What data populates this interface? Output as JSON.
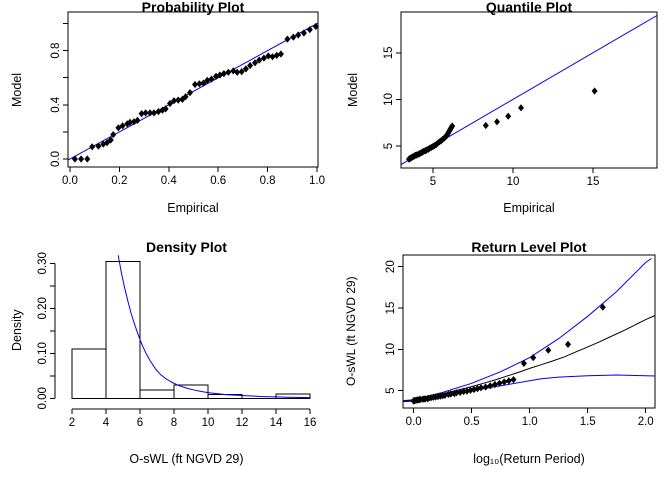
{
  "colors": {
    "fit_line_blue": "#0000EE",
    "data_black": "#000000",
    "background": "#FFFFFF"
  },
  "chart_data": [
    {
      "id": "probability-plot",
      "type": "scatter",
      "title": "Probability Plot",
      "xlabel": "Empirical",
      "ylabel": "Model",
      "rect": {
        "l": 68,
        "t": 12,
        "r": 318,
        "b": 167
      },
      "xlim": [
        -0.008,
        1.004
      ],
      "ylim": [
        -0.059,
        1.085
      ],
      "box": true,
      "grid": false,
      "xticks": {
        "values": [
          0,
          0.2,
          0.4,
          0.6,
          0.8,
          1.0
        ],
        "labels": [
          "0.0",
          "0.2",
          "0.4",
          "0.6",
          "0.8",
          "1.0"
        ]
      },
      "yticks": {
        "values": [
          0,
          0.2,
          0.4,
          0.6,
          0.8,
          1.0
        ],
        "labels": [
          "0.0",
          "",
          "0.4",
          "",
          "0.8",
          ""
        ]
      },
      "lines": [
        {
          "name": "one-to-one-line",
          "color": "#0000EE",
          "width": 1,
          "points": [
            [
              -0.008,
              -0.008
            ],
            [
              1.004,
              1.004
            ]
          ]
        }
      ],
      "points": {
        "name": "probability-points",
        "color": "#000000",
        "marker": "diamond",
        "xy": [
          [
            0.02,
            0.0
          ],
          [
            0.045,
            0.0
          ],
          [
            0.07,
            0.0
          ],
          [
            0.09,
            0.09
          ],
          [
            0.115,
            0.095
          ],
          [
            0.135,
            0.11
          ],
          [
            0.15,
            0.12
          ],
          [
            0.165,
            0.14
          ],
          [
            0.175,
            0.18
          ],
          [
            0.196,
            0.23
          ],
          [
            0.213,
            0.245
          ],
          [
            0.232,
            0.26
          ],
          [
            0.243,
            0.27
          ],
          [
            0.259,
            0.275
          ],
          [
            0.273,
            0.285
          ],
          [
            0.29,
            0.335
          ],
          [
            0.306,
            0.34
          ],
          [
            0.324,
            0.34
          ],
          [
            0.34,
            0.34
          ],
          [
            0.358,
            0.35
          ],
          [
            0.374,
            0.36
          ],
          [
            0.387,
            0.37
          ],
          [
            0.405,
            0.41
          ],
          [
            0.421,
            0.43
          ],
          [
            0.438,
            0.435
          ],
          [
            0.455,
            0.44
          ],
          [
            0.468,
            0.46
          ],
          [
            0.486,
            0.49
          ],
          [
            0.506,
            0.55
          ],
          [
            0.524,
            0.555
          ],
          [
            0.54,
            0.56
          ],
          [
            0.556,
            0.58
          ],
          [
            0.573,
            0.59
          ],
          [
            0.591,
            0.61
          ],
          [
            0.607,
            0.62
          ],
          [
            0.623,
            0.63
          ],
          [
            0.641,
            0.64
          ],
          [
            0.661,
            0.65
          ],
          [
            0.677,
            0.64
          ],
          [
            0.695,
            0.645
          ],
          [
            0.712,
            0.665
          ],
          [
            0.729,
            0.69
          ],
          [
            0.749,
            0.71
          ],
          [
            0.766,
            0.73
          ],
          [
            0.785,
            0.745
          ],
          [
            0.803,
            0.76
          ],
          [
            0.82,
            0.755
          ],
          [
            0.837,
            0.765
          ],
          [
            0.854,
            0.775
          ],
          [
            0.88,
            0.885
          ],
          [
            0.904,
            0.9
          ],
          [
            0.924,
            0.915
          ],
          [
            0.947,
            0.93
          ],
          [
            0.971,
            0.955
          ],
          [
            0.995,
            0.978
          ]
        ]
      }
    },
    {
      "id": "quantile-plot",
      "type": "scatter",
      "title": "Quantile Plot",
      "xlabel": "Empirical",
      "ylabel": "Model",
      "rect": {
        "l": 65,
        "t": 12,
        "r": 321,
        "b": 168
      },
      "xlim": [
        3.0,
        19.0
      ],
      "ylim": [
        2.64,
        19.38
      ],
      "box": true,
      "grid": false,
      "xticks": {
        "values": [
          5,
          10,
          15
        ],
        "labels": [
          "5",
          "10",
          "15"
        ]
      },
      "yticks": {
        "values": [
          5,
          10,
          15
        ],
        "labels": [
          "5",
          "10",
          "15"
        ]
      },
      "lines": [
        {
          "name": "one-to-one-line",
          "color": "#0000EE",
          "width": 1,
          "points": [
            [
              3.0,
              3.0
            ],
            [
              19.0,
              19.0
            ]
          ]
        }
      ],
      "points": {
        "name": "quantile-points",
        "color": "#000000",
        "marker": "diamond",
        "xy": [
          [
            3.5,
            3.6
          ],
          [
            3.55,
            3.65
          ],
          [
            3.6,
            3.7
          ],
          [
            3.65,
            3.75
          ],
          [
            3.7,
            3.8
          ],
          [
            3.75,
            3.85
          ],
          [
            3.8,
            3.9
          ],
          [
            3.85,
            3.95
          ],
          [
            3.9,
            4.0
          ],
          [
            3.95,
            4.02
          ],
          [
            4.0,
            4.06
          ],
          [
            4.1,
            4.12
          ],
          [
            4.15,
            4.17
          ],
          [
            4.2,
            4.22
          ],
          [
            4.3,
            4.3
          ],
          [
            4.35,
            4.36
          ],
          [
            4.4,
            4.42
          ],
          [
            4.5,
            4.48
          ],
          [
            4.55,
            4.52
          ],
          [
            4.6,
            4.57
          ],
          [
            4.7,
            4.65
          ],
          [
            4.75,
            4.7
          ],
          [
            4.8,
            4.76
          ],
          [
            4.9,
            4.85
          ],
          [
            5.0,
            4.95
          ],
          [
            5.1,
            5.05
          ],
          [
            5.2,
            5.15
          ],
          [
            5.3,
            5.3
          ],
          [
            5.4,
            5.45
          ],
          [
            5.5,
            5.55
          ],
          [
            5.6,
            5.7
          ],
          [
            5.7,
            5.85
          ],
          [
            5.8,
            6.0
          ],
          [
            5.85,
            6.1
          ],
          [
            5.9,
            6.25
          ],
          [
            5.95,
            6.4
          ],
          [
            6.0,
            6.55
          ],
          [
            6.05,
            6.7
          ],
          [
            6.1,
            6.85
          ],
          [
            6.15,
            7.0
          ],
          [
            6.2,
            7.15
          ],
          [
            8.3,
            7.2
          ],
          [
            9.0,
            7.6
          ],
          [
            9.7,
            8.2
          ],
          [
            10.5,
            9.1
          ],
          [
            15.1,
            10.9
          ]
        ]
      }
    },
    {
      "id": "density-plot",
      "type": "bar",
      "title": "Density Plot",
      "xlabel": "O-sWL (ft NGVD 29)",
      "ylabel": "Density",
      "rect": {
        "l": 55,
        "t": 10,
        "r": 318,
        "b": 169
      },
      "xlim": [
        1.0,
        16.47
      ],
      "ylim": [
        -0.0238,
        0.3296
      ],
      "box": false,
      "grid": false,
      "axis_x_span": [
        2,
        16
      ],
      "axis_y_span": [
        0,
        0.3
      ],
      "xticks": {
        "values": [
          2,
          4,
          6,
          8,
          10,
          12,
          14,
          16
        ],
        "labels": [
          "2",
          "4",
          "6",
          "8",
          "10",
          "12",
          "14",
          "16"
        ]
      },
      "yticks": {
        "values": [
          0,
          0.05,
          0.1,
          0.15,
          0.2,
          0.25,
          0.3
        ],
        "labels": [
          "0.00",
          "",
          "0.10",
          "",
          "0.20",
          "",
          "0.30"
        ]
      },
      "bars": {
        "name": "histogram-bars",
        "edges": [
          2,
          4,
          6,
          8,
          10,
          12,
          14,
          16
        ],
        "heights": [
          0.11,
          0.304,
          0.018,
          0.03,
          0.008,
          0,
          0.009
        ]
      },
      "lines": [
        {
          "name": "fitted-density-curve",
          "color": "#0000EE",
          "width": 1,
          "points": [
            [
              4.72,
              0.318
            ],
            [
              4.9,
              0.28
            ],
            [
              5.1,
              0.245
            ],
            [
              5.3,
              0.214
            ],
            [
              5.5,
              0.186
            ],
            [
              5.7,
              0.162
            ],
            [
              5.9,
              0.141
            ],
            [
              6.1,
              0.121
            ],
            [
              6.35,
              0.1
            ],
            [
              6.6,
              0.083
            ],
            [
              6.9,
              0.066
            ],
            [
              7.2,
              0.053
            ],
            [
              7.5,
              0.044
            ],
            [
              7.9,
              0.035
            ],
            [
              8.3,
              0.028
            ],
            [
              8.7,
              0.023
            ],
            [
              9.1,
              0.019
            ],
            [
              9.6,
              0.015
            ],
            [
              10.1,
              0.012
            ],
            [
              10.6,
              0.01
            ],
            [
              11.1,
              0.008
            ],
            [
              11.6,
              0.007
            ],
            [
              12.1,
              0.006
            ],
            [
              12.6,
              0.005
            ],
            [
              13.1,
              0.004
            ],
            [
              13.6,
              0.0035
            ],
            [
              14.1,
              0.003
            ],
            [
              14.6,
              0.0025
            ],
            [
              15.1,
              0.002
            ],
            [
              15.6,
              0.0018
            ],
            [
              16.0,
              0.0015
            ]
          ]
        }
      ]
    },
    {
      "id": "return-level-plot",
      "type": "line",
      "title": "Return Level Plot",
      "xlabel": "log₁₀(Return Period)",
      "ylabel": "O-sWL (ft NGVD 29)",
      "rect": {
        "l": 67,
        "t": 15,
        "r": 319,
        "b": 168
      },
      "xlim": [
        -0.092,
        2.08
      ],
      "ylim": [
        2.91,
        21.41
      ],
      "box": true,
      "grid": false,
      "xticks": {
        "values": [
          0,
          0.5,
          1.0,
          1.5,
          2.0
        ],
        "labels": [
          "0.0",
          "0.5",
          "1.0",
          "1.5",
          "2.0"
        ]
      },
      "yticks": {
        "values": [
          5,
          10,
          15,
          20
        ],
        "labels": [
          "5",
          "10",
          "15",
          "20"
        ]
      },
      "lines": [
        {
          "name": "lower-confidence-curve",
          "color": "#0000EE",
          "width": 1,
          "points": [
            [
              -0.09,
              3.68
            ],
            [
              0,
              3.75
            ],
            [
              0.25,
              4.4
            ],
            [
              0.5,
              5.0
            ],
            [
              0.75,
              5.6
            ],
            [
              1.0,
              6.2
            ],
            [
              1.1,
              6.45
            ],
            [
              1.25,
              6.65
            ],
            [
              1.5,
              6.8
            ],
            [
              1.75,
              6.9
            ],
            [
              2.0,
              6.8
            ],
            [
              2.08,
              6.78
            ]
          ]
        },
        {
          "name": "upper-confidence-curve",
          "color": "#0000EE",
          "width": 1,
          "points": [
            [
              -0.09,
              3.8
            ],
            [
              0,
              3.9
            ],
            [
              0.25,
              4.8
            ],
            [
              0.5,
              5.9
            ],
            [
              0.75,
              7.3
            ],
            [
              1.0,
              9.0
            ],
            [
              1.25,
              11.3
            ],
            [
              1.5,
              14.0
            ],
            [
              1.75,
              17.0
            ],
            [
              2.0,
              20.5
            ],
            [
              2.05,
              21.0
            ]
          ]
        },
        {
          "name": "return-level-curve",
          "color": "#000000",
          "width": 1,
          "points": [
            [
              -0.09,
              3.72
            ],
            [
              0,
              3.8
            ],
            [
              0.1,
              4.1
            ],
            [
              0.2,
              4.45
            ],
            [
              0.3,
              4.8
            ],
            [
              0.4,
              5.15
            ],
            [
              0.5,
              5.5
            ],
            [
              0.6,
              5.9
            ],
            [
              0.7,
              6.3
            ],
            [
              0.8,
              6.75
            ],
            [
              0.9,
              7.2
            ],
            [
              1.0,
              7.7
            ],
            [
              1.1,
              8.15
            ],
            [
              1.2,
              8.6
            ],
            [
              1.3,
              9.1
            ],
            [
              1.4,
              9.7
            ],
            [
              1.5,
              10.3
            ],
            [
              1.6,
              10.9
            ],
            [
              1.7,
              11.55
            ],
            [
              1.8,
              12.2
            ],
            [
              1.9,
              12.9
            ],
            [
              2.0,
              13.6
            ],
            [
              2.08,
              14.1
            ]
          ]
        }
      ],
      "points": {
        "name": "return-level-points",
        "color": "#000000",
        "marker": "diamond",
        "xy": [
          [
            0.0,
            3.75
          ],
          [
            0.0,
            3.8
          ],
          [
            0.01,
            3.82
          ],
          [
            0.02,
            3.85
          ],
          [
            0.03,
            3.88
          ],
          [
            0.04,
            3.9
          ],
          [
            0.05,
            3.92
          ],
          [
            0.06,
            3.95
          ],
          [
            0.08,
            3.98
          ],
          [
            0.09,
            4.0
          ],
          [
            0.1,
            4.02
          ],
          [
            0.12,
            4.05
          ],
          [
            0.13,
            4.1
          ],
          [
            0.15,
            4.15
          ],
          [
            0.17,
            4.2
          ],
          [
            0.19,
            4.25
          ],
          [
            0.21,
            4.3
          ],
          [
            0.23,
            4.35
          ],
          [
            0.25,
            4.4
          ],
          [
            0.27,
            4.45
          ],
          [
            0.3,
            4.55
          ],
          [
            0.32,
            4.6
          ],
          [
            0.35,
            4.65
          ],
          [
            0.37,
            4.75
          ],
          [
            0.4,
            4.8
          ],
          [
            0.43,
            4.9
          ],
          [
            0.46,
            4.95
          ],
          [
            0.49,
            5.05
          ],
          [
            0.52,
            5.15
          ],
          [
            0.55,
            5.25
          ],
          [
            0.58,
            5.35
          ],
          [
            0.62,
            5.45
          ],
          [
            0.66,
            5.6
          ],
          [
            0.7,
            5.75
          ],
          [
            0.74,
            5.9
          ],
          [
            0.78,
            6.05
          ],
          [
            0.82,
            6.2
          ],
          [
            0.86,
            6.35
          ],
          [
            0.95,
            8.3
          ],
          [
            1.03,
            9.0
          ],
          [
            1.16,
            9.9
          ],
          [
            1.33,
            10.6
          ],
          [
            1.63,
            15.1
          ]
        ]
      }
    }
  ]
}
